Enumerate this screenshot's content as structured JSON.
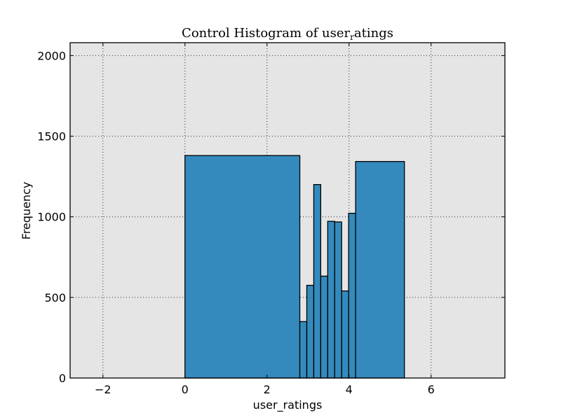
{
  "chart_data": {
    "type": "bar",
    "title": "Control Histogram of user_ratings",
    "title_parts": {
      "main": "Control Histogram of user",
      "subscript": "r",
      "rest": "atings"
    },
    "xlabel": "user_ratings",
    "ylabel": "Frequency",
    "xlim": [
      -2.8,
      7.8
    ],
    "ylim": [
      0,
      2080
    ],
    "x_ticks": [
      -2,
      0,
      2,
      4,
      6
    ],
    "x_tick_labels": [
      "−2",
      "0",
      "2",
      "4",
      "6"
    ],
    "y_ticks": [
      0,
      500,
      1000,
      1500,
      2000
    ],
    "y_tick_labels": [
      "0",
      "500",
      "1000",
      "1500",
      "2000"
    ],
    "grid": true,
    "bar_color": "#348abd",
    "background_color": "#e5e5e5",
    "bins": [
      {
        "x0": 0.0,
        "x1": 2.8,
        "value": 1380
      },
      {
        "x0": 2.8,
        "x1": 2.97,
        "value": 350
      },
      {
        "x0": 2.97,
        "x1": 3.14,
        "value": 575
      },
      {
        "x0": 3.14,
        "x1": 3.31,
        "value": 1200
      },
      {
        "x0": 3.31,
        "x1": 3.48,
        "value": 632
      },
      {
        "x0": 3.48,
        "x1": 3.65,
        "value": 972
      },
      {
        "x0": 3.65,
        "x1": 3.82,
        "value": 968
      },
      {
        "x0": 3.82,
        "x1": 3.99,
        "value": 540
      },
      {
        "x0": 3.99,
        "x1": 4.16,
        "value": 1022
      },
      {
        "x0": 4.16,
        "x1": 5.35,
        "value": 1343
      }
    ]
  }
}
